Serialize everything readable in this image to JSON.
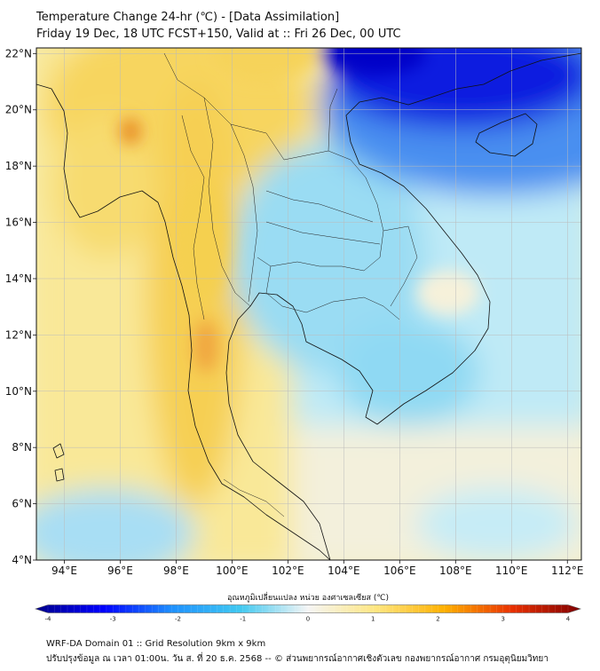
{
  "title_line1": "Temperature Change 24-hr (℃) - [Data Assimilation]",
  "title_line2": "Friday 19 Dec, 18 UTC FCST+150, Valid at :: Fri 26 Dec, 00 UTC",
  "map": {
    "lon_range": [
      93,
      112.5
    ],
    "lat_range": [
      4,
      22.2
    ],
    "lon_ticks": [
      "94°E",
      "96°E",
      "98°E",
      "100°E",
      "102°E",
      "104°E",
      "106°E",
      "108°E",
      "110°E",
      "112°E"
    ],
    "lat_ticks": [
      "4°N",
      "6°N",
      "8°N",
      "10°N",
      "12°N",
      "14°N",
      "16°N",
      "18°N",
      "20°N",
      "22°N"
    ]
  },
  "colorbar": {
    "label": "อุณหภูมิเปลี่ยนแปลง หน่วย องศาเซลเซียส (℃)",
    "range": [
      -4,
      4
    ],
    "ticks": [
      "-4",
      "-3",
      "-2",
      "-1",
      "0",
      "1",
      "2",
      "3",
      "4"
    ],
    "colors": [
      "#00008b",
      "#0000ff",
      "#1e90ff",
      "#40c8f0",
      "#f5f5f5",
      "#ffe680",
      "#ffb000",
      "#e83000",
      "#800000"
    ]
  },
  "footer_line1": "WRF-DA Domain 01 :: Grid Resolution 9km x 9km",
  "footer_line2": "ปรับปรุงข้อมูล ณ เวลา 01:00น. วัน ส. ที่ 20 ธ.ค. 2568 -- © ส่วนพยากรณ์อากาศเชิงตัวเลข กองพยากรณ์อากาศ กรมอุตุนิยมวิทยา"
}
